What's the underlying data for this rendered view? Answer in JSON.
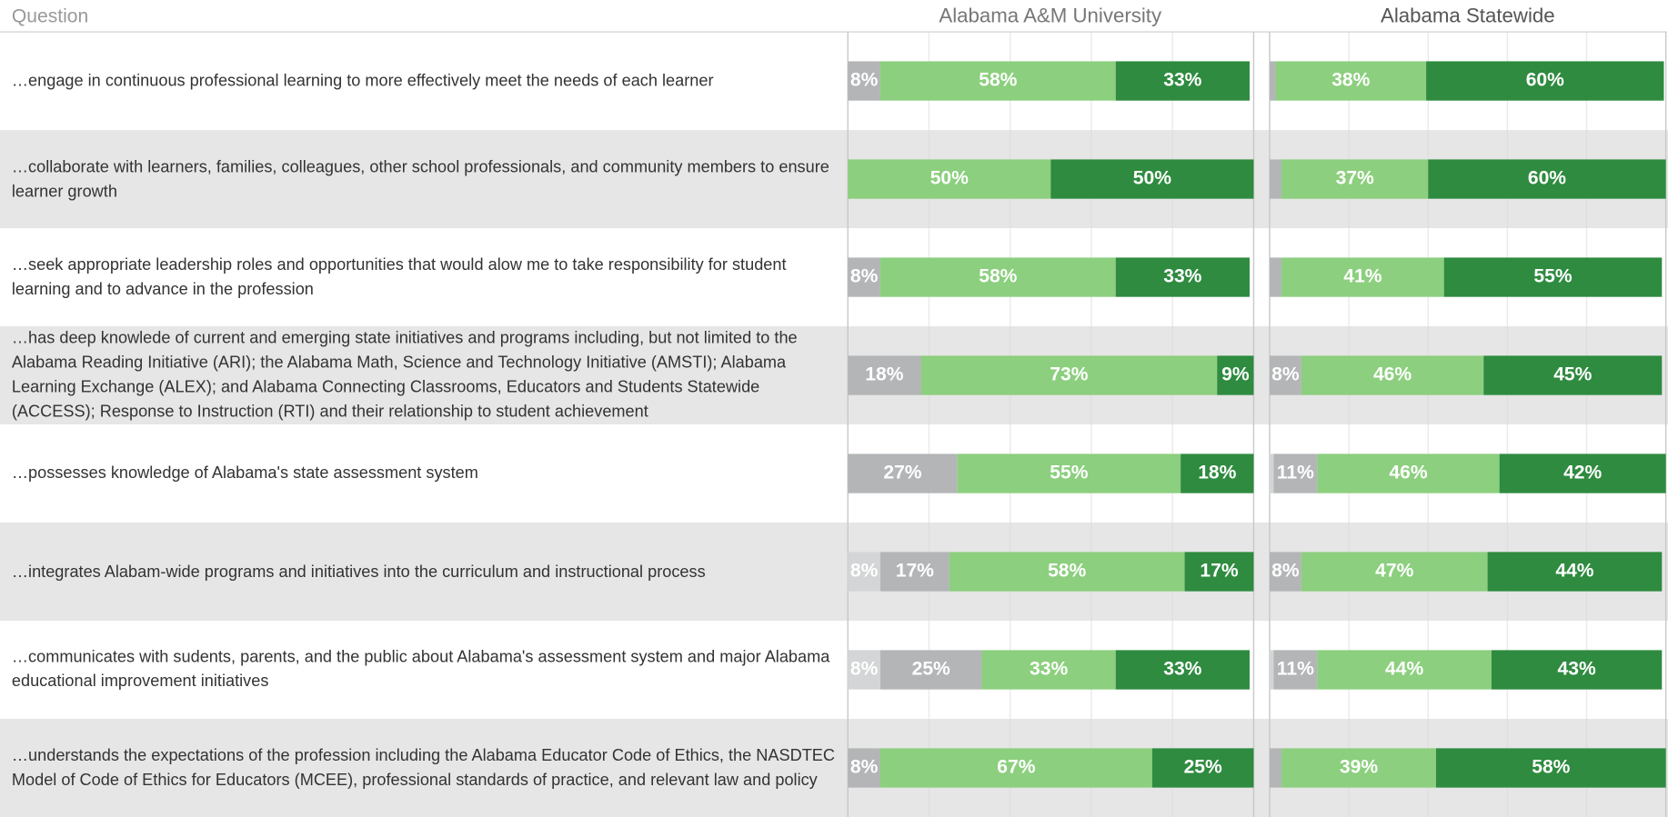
{
  "category_header": "Question",
  "chart_data": [
    {
      "type": "stacked_bar_h",
      "title": "Alabama A&M University",
      "categories": [
        "…engage in continuous professional learning to more effectively meet the needs of each learner",
        "…collaborate with learners, families, colleagues, other school professionals, and community members to ensure learner growth",
        "…seek appropriate leadership roles and opportunities that would alow me to take responsibility for student learning and to advance in the profession",
        "…has deep knowlede of current and emerging state initiatives and programs including, but not limited to the Alabama Reading Initiative (ARI); the Alabama Math, Science and Technology Initiative (AMSTI); Alabama Learning Exchange (ALEX); and Alabama Connecting Classrooms, Educators and Students Statewide (ACCESS); Response to Instruction (RTI) and their relationship to student achievement",
        "…possesses knowledge of Alabama's state assessment system",
        "…integrates Alabam-wide programs and initiatives into the curriculum and instructional process",
        "…communicates with sudents, parents, and the public about Alabama's assessment system and major Alabama educational improvement initiatives",
        "…understands the expectations of the profession including the Alabama Educator Code of Ethics, the NASDTEC Model of Code of Ethics for Educators (MCEE), professional standards of practice, and relevant law and policy"
      ],
      "xlim": [
        0,
        100
      ],
      "xticks": [
        0,
        20,
        40,
        60,
        80,
        100
      ],
      "series": [
        {
          "color": "#d4d5d6",
          "values": [
            0,
            0,
            0,
            0,
            0,
            8,
            8,
            0
          ],
          "value_labels": [
            null,
            null,
            null,
            null,
            null,
            "8%",
            "8%",
            null
          ]
        },
        {
          "color": "#b3b5b7",
          "values": [
            8,
            0,
            8,
            18,
            27,
            17,
            25,
            8
          ],
          "value_labels": [
            "8%",
            null,
            "8%",
            "18%",
            "27%",
            "17%",
            "25%",
            "8%"
          ]
        },
        {
          "color": "#8ccf7e",
          "values": [
            58,
            50,
            58,
            73,
            55,
            58,
            33,
            67
          ],
          "value_labels": [
            "58%",
            "50%",
            "58%",
            "73%",
            "55%",
            "58%",
            "33%",
            "67%"
          ]
        },
        {
          "color": "#2e8b3f",
          "values": [
            33,
            50,
            33,
            9,
            18,
            17,
            33,
            25
          ],
          "value_labels": [
            "33%",
            "50%",
            "33%",
            "9%",
            "18%",
            "17%",
            "33%",
            "25%"
          ]
        }
      ]
    },
    {
      "type": "stacked_bar_h",
      "title": "Alabama Statewide",
      "xlim": [
        0,
        100
      ],
      "xticks": [
        0,
        20,
        40,
        60,
        80,
        100
      ],
      "series": [
        {
          "color": "#d4d5d6",
          "values": [
            0,
            0,
            0,
            0,
            1,
            0,
            1,
            0
          ],
          "value_labels": [
            null,
            null,
            null,
            null,
            null,
            null,
            null,
            null
          ]
        },
        {
          "color": "#b3b5b7",
          "values": [
            1.5,
            3,
            3,
            8,
            11,
            8,
            11,
            3
          ],
          "value_labels": [
            null,
            null,
            null,
            "8%",
            "11%",
            "8%",
            "11%",
            null
          ]
        },
        {
          "color": "#8ccf7e",
          "values": [
            38,
            37,
            41,
            46,
            46,
            47,
            44,
            39
          ],
          "value_labels": [
            "38%",
            "37%",
            "41%",
            "46%",
            "46%",
            "47%",
            "44%",
            "39%"
          ]
        },
        {
          "color": "#2e8b3f",
          "values": [
            60,
            60,
            55,
            45,
            42,
            44,
            43,
            58
          ],
          "value_labels": [
            "60%",
            "60%",
            "55%",
            "45%",
            "42%",
            "44%",
            "43%",
            "58%"
          ]
        }
      ]
    }
  ]
}
